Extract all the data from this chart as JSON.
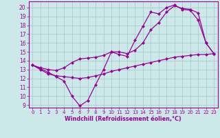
{
  "xlabel": "Windchill (Refroidissement éolien,°C)",
  "bg_color": "#cce8e8",
  "grid_color": "#aacccc",
  "line_color": "#990099",
  "x_hours": [
    0,
    1,
    2,
    3,
    4,
    5,
    6,
    7,
    8,
    9,
    10,
    11,
    12,
    13,
    14,
    15,
    16,
    17,
    18,
    19,
    20,
    21,
    22,
    23
  ],
  "line1_y": [
    13.5,
    13.1,
    12.7,
    12.2,
    11.7,
    10.0,
    8.9,
    9.5,
    11.3,
    13.0,
    15.0,
    14.7,
    14.5,
    16.3,
    17.9,
    19.5,
    19.3,
    20.0,
    20.3,
    19.8,
    19.7,
    18.6,
    16.0,
    14.8
  ],
  "line2_y": [
    13.5,
    13.0,
    12.5,
    12.3,
    12.2,
    12.1,
    12.0,
    12.1,
    12.3,
    12.5,
    12.8,
    13.0,
    13.2,
    13.4,
    13.6,
    13.8,
    14.0,
    14.2,
    14.4,
    14.5,
    14.6,
    14.7,
    14.7,
    14.8
  ],
  "line3_y": [
    13.5,
    13.2,
    13.0,
    12.9,
    13.2,
    13.8,
    14.2,
    14.3,
    14.4,
    14.6,
    15.0,
    15.0,
    14.8,
    15.2,
    16.0,
    17.5,
    18.3,
    19.5,
    20.2,
    19.9,
    19.8,
    19.4,
    16.0,
    14.8
  ],
  "ylim": [
    8.7,
    20.7
  ],
  "yticks": [
    9,
    10,
    11,
    12,
    13,
    14,
    15,
    16,
    17,
    18,
    19,
    20
  ],
  "xlim": [
    -0.5,
    23.5
  ]
}
